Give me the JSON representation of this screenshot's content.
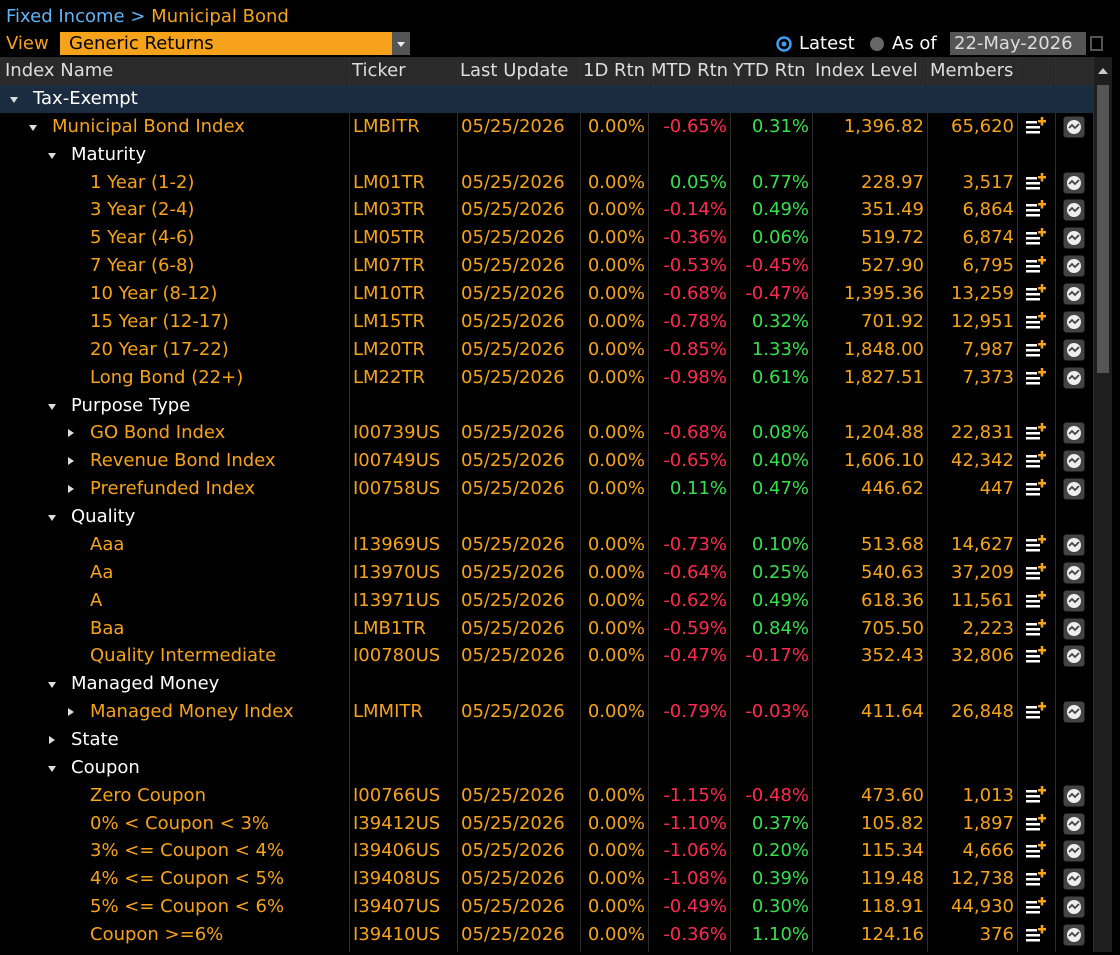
{
  "header": {
    "breadcrumb": [
      "Fixed Income",
      "Municipal Bond"
    ],
    "separator": ">"
  },
  "toolbar": {
    "view_label": "View",
    "view_value": "Generic Returns",
    "latest": "Latest",
    "as_of": "As of",
    "date": "22-May-2026",
    "selected": "latest"
  },
  "columns": [
    "Index Name",
    "Ticker",
    "Last Update",
    "1D Rtn",
    "MTD Rtn",
    "YTD Rtn",
    "Index Level",
    "Members"
  ],
  "tree": [
    {
      "label": "Tax-Exempt",
      "expanded": true,
      "children": [
        {
          "label": "Municipal Bond Index",
          "ticker": "LMBITR",
          "last_update": "05/25/2026",
          "rtn_1d": "0.00%",
          "rtn_mtd": "-0.65%",
          "rtn_ytd": "0.31%",
          "index_level": "1,396.82",
          "members": "65,620",
          "expanded": true,
          "children": [
            {
              "label": "Maturity",
              "expanded": true,
              "children": [
                {
                  "label": "1 Year (1-2)",
                  "ticker": "LM01TR",
                  "last_update": "05/25/2026",
                  "rtn_1d": "0.00%",
                  "rtn_mtd": "0.05%",
                  "rtn_ytd": "0.77%",
                  "index_level": "228.97",
                  "members": "3,517"
                },
                {
                  "label": "3 Year (2-4)",
                  "ticker": "LM03TR",
                  "last_update": "05/25/2026",
                  "rtn_1d": "0.00%",
                  "rtn_mtd": "-0.14%",
                  "rtn_ytd": "0.49%",
                  "index_level": "351.49",
                  "members": "6,864"
                },
                {
                  "label": "5 Year (4-6)",
                  "ticker": "LM05TR",
                  "last_update": "05/25/2026",
                  "rtn_1d": "0.00%",
                  "rtn_mtd": "-0.36%",
                  "rtn_ytd": "0.06%",
                  "index_level": "519.72",
                  "members": "6,874"
                },
                {
                  "label": "7 Year (6-8)",
                  "ticker": "LM07TR",
                  "last_update": "05/25/2026",
                  "rtn_1d": "0.00%",
                  "rtn_mtd": "-0.53%",
                  "rtn_ytd": "-0.45%",
                  "index_level": "527.90",
                  "members": "6,795"
                },
                {
                  "label": "10 Year (8-12)",
                  "ticker": "LM10TR",
                  "last_update": "05/25/2026",
                  "rtn_1d": "0.00%",
                  "rtn_mtd": "-0.68%",
                  "rtn_ytd": "-0.47%",
                  "index_level": "1,395.36",
                  "members": "13,259"
                },
                {
                  "label": "15 Year (12-17)",
                  "ticker": "LM15TR",
                  "last_update": "05/25/2026",
                  "rtn_1d": "0.00%",
                  "rtn_mtd": "-0.78%",
                  "rtn_ytd": "0.32%",
                  "index_level": "701.92",
                  "members": "12,951"
                },
                {
                  "label": "20 Year (17-22)",
                  "ticker": "LM20TR",
                  "last_update": "05/25/2026",
                  "rtn_1d": "0.00%",
                  "rtn_mtd": "-0.85%",
                  "rtn_ytd": "1.33%",
                  "index_level": "1,848.00",
                  "members": "7,987"
                },
                {
                  "label": "Long Bond (22+)",
                  "ticker": "LM22TR",
                  "last_update": "05/25/2026",
                  "rtn_1d": "0.00%",
                  "rtn_mtd": "-0.98%",
                  "rtn_ytd": "0.61%",
                  "index_level": "1,827.51",
                  "members": "7,373"
                }
              ]
            },
            {
              "label": "Purpose Type",
              "expanded": true,
              "children": [
                {
                  "label": "GO Bond Index",
                  "ticker": "I00739US",
                  "last_update": "05/25/2026",
                  "rtn_1d": "0.00%",
                  "rtn_mtd": "-0.68%",
                  "rtn_ytd": "0.08%",
                  "index_level": "1,204.88",
                  "members": "22,831",
                  "expanded": false
                },
                {
                  "label": "Revenue Bond Index",
                  "ticker": "I00749US",
                  "last_update": "05/25/2026",
                  "rtn_1d": "0.00%",
                  "rtn_mtd": "-0.65%",
                  "rtn_ytd": "0.40%",
                  "index_level": "1,606.10",
                  "members": "42,342",
                  "expanded": false
                },
                {
                  "label": "Prerefunded Index",
                  "ticker": "I00758US",
                  "last_update": "05/25/2026",
                  "rtn_1d": "0.00%",
                  "rtn_mtd": "0.11%",
                  "rtn_ytd": "0.47%",
                  "index_level": "446.62",
                  "members": "447",
                  "expanded": false
                }
              ]
            },
            {
              "label": "Quality",
              "expanded": true,
              "children": [
                {
                  "label": "Aaa",
                  "ticker": "I13969US",
                  "last_update": "05/25/2026",
                  "rtn_1d": "0.00%",
                  "rtn_mtd": "-0.73%",
                  "rtn_ytd": "0.10%",
                  "index_level": "513.68",
                  "members": "14,627"
                },
                {
                  "label": "Aa",
                  "ticker": "I13970US",
                  "last_update": "05/25/2026",
                  "rtn_1d": "0.00%",
                  "rtn_mtd": "-0.64%",
                  "rtn_ytd": "0.25%",
                  "index_level": "540.63",
                  "members": "37,209"
                },
                {
                  "label": "A",
                  "ticker": "I13971US",
                  "last_update": "05/25/2026",
                  "rtn_1d": "0.00%",
                  "rtn_mtd": "-0.62%",
                  "rtn_ytd": "0.49%",
                  "index_level": "618.36",
                  "members": "11,561"
                },
                {
                  "label": "Baa",
                  "ticker": "LMB1TR",
                  "last_update": "05/25/2026",
                  "rtn_1d": "0.00%",
                  "rtn_mtd": "-0.59%",
                  "rtn_ytd": "0.84%",
                  "index_level": "705.50",
                  "members": "2,223"
                },
                {
                  "label": "Quality Intermediate",
                  "ticker": "I00780US",
                  "last_update": "05/25/2026",
                  "rtn_1d": "0.00%",
                  "rtn_mtd": "-0.47%",
                  "rtn_ytd": "-0.17%",
                  "index_level": "352.43",
                  "members": "32,806"
                }
              ]
            },
            {
              "label": "Managed Money",
              "expanded": true,
              "children": [
                {
                  "label": "Managed Money Index",
                  "ticker": "LMMITR",
                  "last_update": "05/25/2026",
                  "rtn_1d": "0.00%",
                  "rtn_mtd": "-0.79%",
                  "rtn_ytd": "-0.03%",
                  "index_level": "411.64",
                  "members": "26,848",
                  "expanded": false
                }
              ]
            },
            {
              "label": "State",
              "expanded": false
            },
            {
              "label": "Coupon",
              "expanded": true,
              "children": [
                {
                  "label": "Zero Coupon",
                  "ticker": "I00766US",
                  "last_update": "05/25/2026",
                  "rtn_1d": "0.00%",
                  "rtn_mtd": "-1.15%",
                  "rtn_ytd": "-0.48%",
                  "index_level": "473.60",
                  "members": "1,013"
                },
                {
                  "label": "0% < Coupon < 3%",
                  "ticker": "I39412US",
                  "last_update": "05/25/2026",
                  "rtn_1d": "0.00%",
                  "rtn_mtd": "-1.10%",
                  "rtn_ytd": "0.37%",
                  "index_level": "105.82",
                  "members": "1,897"
                },
                {
                  "label": "3% <= Coupon < 4%",
                  "ticker": "I39406US",
                  "last_update": "05/25/2026",
                  "rtn_1d": "0.00%",
                  "rtn_mtd": "-1.06%",
                  "rtn_ytd": "0.20%",
                  "index_level": "115.34",
                  "members": "4,666"
                },
                {
                  "label": "4% <= Coupon < 5%",
                  "ticker": "I39408US",
                  "last_update": "05/25/2026",
                  "rtn_1d": "0.00%",
                  "rtn_mtd": "-1.08%",
                  "rtn_ytd": "0.39%",
                  "index_level": "119.48",
                  "members": "12,738"
                },
                {
                  "label": "5% <= Coupon < 6%",
                  "ticker": "I39407US",
                  "last_update": "05/25/2026",
                  "rtn_1d": "0.00%",
                  "rtn_mtd": "-0.49%",
                  "rtn_ytd": "0.30%",
                  "index_level": "118.91",
                  "members": "44,930"
                },
                {
                  "label": "Coupon >=6%",
                  "ticker": "I39410US",
                  "last_update": "05/25/2026",
                  "rtn_1d": "0.00%",
                  "rtn_mtd": "-0.36%",
                  "rtn_ytd": "1.10%",
                  "index_level": "124.16",
                  "members": "376"
                }
              ]
            }
          ]
        }
      ]
    }
  ]
}
